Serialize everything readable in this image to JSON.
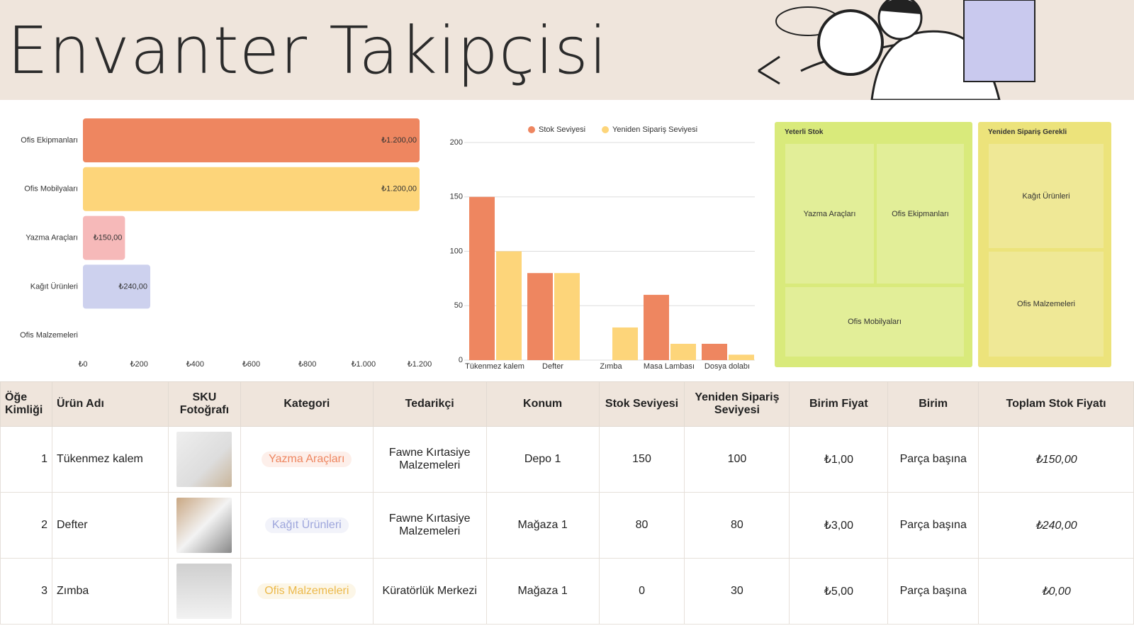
{
  "header": {
    "title": "Envanter Takipçisi"
  },
  "chart_data": [
    {
      "type": "bar",
      "orientation": "horizontal",
      "categories": [
        "Ofis Ekipmanları",
        "Ofis Mobilyaları",
        "Yazma Araçları",
        "Kağıt Ürünleri",
        "Ofis Malzemeleri"
      ],
      "values": [
        1200,
        1200,
        150,
        240,
        0
      ],
      "value_labels": [
        "₺1.200,00",
        "₺1.200,00",
        "₺150,00",
        "₺240,00",
        null
      ],
      "colors": [
        "#ee8660",
        "#fdd57a",
        "#f6b9b9",
        "#cdd1ee",
        "#cccccc"
      ],
      "xlim": [
        0,
        1200
      ],
      "xticks": [
        {
          "value": 0,
          "label": "₺0"
        },
        {
          "value": 200,
          "label": "₺200"
        },
        {
          "value": 400,
          "label": "₺400"
        },
        {
          "value": 600,
          "label": "₺600"
        },
        {
          "value": 800,
          "label": "₺800"
        },
        {
          "value": 1000,
          "label": "₺1.000"
        },
        {
          "value": 1200,
          "label": "₺1.200"
        }
      ]
    },
    {
      "type": "bar",
      "orientation": "vertical",
      "categories": [
        "Tükenmez kalem",
        "Defter",
        "Zımba",
        "Masa Lambası",
        "Dosya dolabı"
      ],
      "series": [
        {
          "name": "Stok Seviyesi",
          "color": "#ee8660",
          "values": [
            150,
            80,
            0,
            60,
            15
          ]
        },
        {
          "name": "Yeniden Sipariş Seviyesi",
          "color": "#fdd57a",
          "values": [
            100,
            80,
            30,
            15,
            5
          ]
        }
      ],
      "ylim": [
        0,
        200
      ],
      "yticks": [
        0,
        50,
        100,
        150,
        200
      ],
      "grid": true,
      "legend": "top"
    }
  ],
  "treemap": {
    "groups": [
      {
        "label": "Yeterli Stok",
        "color": "#d9ea7b",
        "tile_color": "#e2ee98",
        "items": [
          "Yazma Araçları",
          "Ofis Ekipmanları",
          "Ofis Mobilyaları"
        ]
      },
      {
        "label": "Yeniden Sipariş Gerekli",
        "color": "#ece37b",
        "tile_color": "#efe896",
        "items": [
          "Kağıt Ürünleri",
          "Ofis Malzemeleri"
        ]
      }
    ]
  },
  "table": {
    "columns": [
      "Öğe Kimliği",
      "Ürün Adı",
      "SKU Fotoğrafı",
      "Kategori",
      "Tedarikçi",
      "Konum",
      "Stok Seviyesi",
      "Yeniden Sipariş Seviyesi",
      "Birim Fiyat",
      "Birim",
      "Toplam Stok Fiyatı"
    ],
    "rows": [
      [
        "1",
        "Tükenmez kalem",
        "Yazma Araçları",
        "Fawne Kırtasiye Malzemeleri",
        "Depo 1",
        "150",
        "100",
        "₺1,00",
        "Parça başına",
        "₺150,00"
      ],
      [
        "2",
        "Defter",
        "Kağıt Ürünleri",
        "Fawne Kırtasiye Malzemeleri",
        "Mağaza 1",
        "80",
        "80",
        "₺3,00",
        "Parça başına",
        "₺240,00"
      ],
      [
        "3",
        "Zımba",
        "Ofis Malzemeleri",
        "Küratörlük Merkezi",
        "Mağaza 1",
        "0",
        "30",
        "₺5,00",
        "Parça başına",
        "₺0,00"
      ]
    ],
    "category_colors": [
      "#ee8660",
      "#9ea6dc",
      "#ecb94a"
    ]
  }
}
